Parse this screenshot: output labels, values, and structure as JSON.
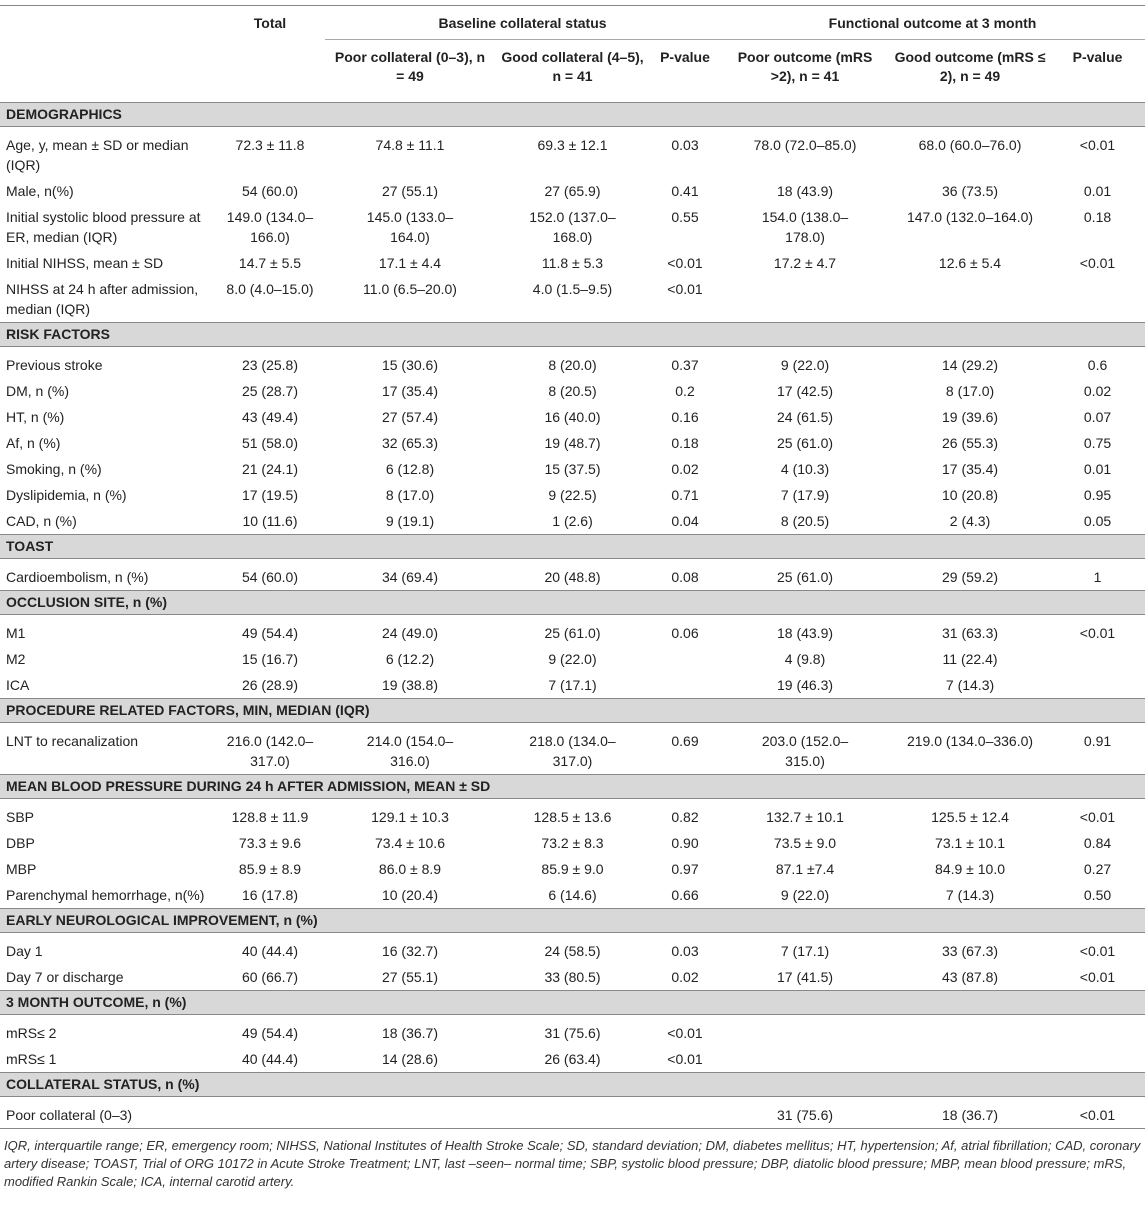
{
  "header": {
    "total": "Total",
    "baseline": "Baseline collateral status",
    "functional": "Functional outcome at 3 month",
    "columns": [
      "Poor collateral (0–3), n = 49",
      "Good collateral (4–5), n = 41",
      "P-value",
      "Poor outcome (mRS >2), n = 41",
      "Good outcome (mRS ≤ 2), n = 49",
      "P-value"
    ]
  },
  "sections": [
    {
      "title": "DEMOGRAPHICS",
      "rows": [
        [
          "Age, y, mean ± SD or median (IQR)",
          "72.3 ± 11.8",
          "74.8 ± 11.1",
          "69.3 ± 12.1",
          "0.03",
          "78.0 (72.0–85.0)",
          "68.0 (60.0–76.0)",
          "<0.01"
        ],
        [
          "Male, n(%)",
          "54 (60.0)",
          "27 (55.1)",
          "27 (65.9)",
          "0.41",
          "18 (43.9)",
          "36 (73.5)",
          "0.01"
        ],
        [
          "Initial systolic blood pressure at ER, median (IQR)",
          "149.0 (134.0–166.0)",
          "145.0 (133.0–164.0)",
          "152.0 (137.0–168.0)",
          "0.55",
          "154.0 (138.0–178.0)",
          "147.0 (132.0–164.0)",
          "0.18"
        ],
        [
          "Initial NIHSS, mean ± SD",
          "14.7 ± 5.5",
          "17.1 ± 4.4",
          "11.8 ± 5.3",
          "<0.01",
          "17.2 ± 4.7",
          "12.6 ± 5.4",
          "<0.01"
        ],
        [
          "NIHSS at 24 h after admission, median (IQR)",
          "8.0 (4.0–15.0)",
          "11.0 (6.5–20.0)",
          "4.0 (1.5–9.5)",
          "<0.01",
          null,
          null,
          null
        ]
      ]
    },
    {
      "title": "RISK FACTORS",
      "rows": [
        [
          "Previous stroke",
          "23 (25.8)",
          "15 (30.6)",
          "8 (20.0)",
          "0.37",
          "9 (22.0)",
          "14 (29.2)",
          "0.6"
        ],
        [
          "DM, n (%)",
          "25 (28.7)",
          "17 (35.4)",
          "8 (20.5)",
          "0.2",
          "17 (42.5)",
          "8 (17.0)",
          "0.02"
        ],
        [
          "HT, n (%)",
          "43 (49.4)",
          "27 (57.4)",
          "16 (40.0)",
          "0.16",
          "24 (61.5)",
          "19 (39.6)",
          "0.07"
        ],
        [
          "Af, n (%)",
          "51 (58.0)",
          "32 (65.3)",
          "19 (48.7)",
          "0.18",
          "25 (61.0)",
          "26 (55.3)",
          "0.75"
        ],
        [
          "Smoking, n (%)",
          "21 (24.1)",
          "6 (12.8)",
          "15 (37.5)",
          "0.02",
          "4 (10.3)",
          "17 (35.4)",
          "0.01"
        ],
        [
          "Dyslipidemia, n (%)",
          "17 (19.5)",
          "8 (17.0)",
          "9 (22.5)",
          "0.71",
          "7 (17.9)",
          "10 (20.8)",
          "0.95"
        ],
        [
          "CAD, n (%)",
          "10 (11.6)",
          "9 (19.1)",
          "1 (2.6)",
          "0.04",
          "8 (20.5)",
          "2 (4.3)",
          "0.05"
        ]
      ]
    },
    {
      "title": "TOAST",
      "rows": [
        [
          "Cardioembolism, n (%)",
          "54 (60.0)",
          "34 (69.4)",
          "20 (48.8)",
          "0.08",
          "25 (61.0)",
          "29 (59.2)",
          "1"
        ]
      ]
    },
    {
      "title": "OCCLUSION SITE, n (%)",
      "rows": [
        [
          "M1",
          "49 (54.4)",
          "24 (49.0)",
          "25 (61.0)",
          "0.06",
          "18 (43.9)",
          "31 (63.3)",
          "<0.01"
        ],
        [
          "M2",
          "15 (16.7)",
          "6 (12.2)",
          "9 (22.0)",
          null,
          "4 (9.8)",
          "11 (22.4)",
          null
        ],
        [
          "ICA",
          "26 (28.9)",
          "19 (38.8)",
          "7 (17.1)",
          null,
          "19 (46.3)",
          "7 (14.3)",
          null
        ]
      ]
    },
    {
      "title": "PROCEDURE RELATED FACTORS, MIN, MEDIAN (IQR)",
      "rows": [
        [
          "LNT to recanalization",
          "216.0 (142.0–317.0)",
          "214.0 (154.0–316.0)",
          "218.0 (134.0–317.0)",
          "0.69",
          "203.0 (152.0–315.0)",
          "219.0 (134.0–336.0)",
          "0.91"
        ]
      ]
    },
    {
      "title": "MEAN BLOOD PRESSURE DURING 24 h AFTER ADMISSION, MEAN ± SD",
      "rows": [
        [
          "SBP",
          "128.8 ± 11.9",
          "129.1 ± 10.3",
          "128.5 ± 13.6",
          "0.82",
          "132.7 ± 10.1",
          "125.5 ± 12.4",
          "<0.01"
        ],
        [
          "DBP",
          "73.3 ± 9.6",
          "73.4 ± 10.6",
          "73.2 ± 8.3",
          "0.90",
          "73.5 ± 9.0",
          "73.1 ± 10.1",
          "0.84"
        ],
        [
          "MBP",
          "85.9 ± 8.9",
          "86.0 ± 8.9",
          "85.9 ± 9.0",
          "0.97",
          "87.1 ±7.4",
          "84.9 ± 10.0",
          "0.27"
        ],
        [
          "Parenchymal hemorrhage, n(%)",
          "16 (17.8)",
          "10 (20.4)",
          "6 (14.6)",
          "0.66",
          "9 (22.0)",
          "7 (14.3)",
          "0.50"
        ]
      ]
    },
    {
      "title": "EARLY NEUROLOGICAL IMPROVEMENT, n (%)",
      "rows": [
        [
          "Day 1",
          "40 (44.4)",
          "16 (32.7)",
          "24 (58.5)",
          "0.03",
          "7 (17.1)",
          "33 (67.3)",
          "<0.01"
        ],
        [
          "Day 7 or discharge",
          "60 (66.7)",
          "27 (55.1)",
          "33 (80.5)",
          "0.02",
          "17 (41.5)",
          "43 (87.8)",
          "<0.01"
        ]
      ]
    },
    {
      "title": "3 MONTH OUTCOME, n (%)",
      "rows": [
        [
          "mRS≤ 2",
          "49 (54.4)",
          "18 (36.7)",
          "31 (75.6)",
          "<0.01",
          null,
          null,
          null
        ],
        [
          "mRS≤ 1",
          "40 (44.4)",
          "14 (28.6)",
          "26 (63.4)",
          "<0.01",
          null,
          null,
          null
        ]
      ]
    },
    {
      "title": "COLLATERAL STATUS, n (%)",
      "rows": [
        [
          "Poor collateral (0–3)",
          null,
          null,
          null,
          null,
          "31 (75.6)",
          "18 (36.7)",
          "<0.01"
        ]
      ]
    }
  ],
  "footnote": "IQR, interquartile range; ER, emergency room; NIHSS, National Institutes of Health Stroke Scale; SD, standard deviation; DM, diabetes mellitus; HT, hypertension; Af, atrial fibrillation; CAD, coronary artery disease; TOAST, Trial of ORG 10172 in Acute Stroke Treatment; LNT, last –seen– normal time; SBP, systolic blood pressure; DBP, diatolic blood pressure; MBP, mean blood pressure; mRS, modified Rankin Scale; ICA, internal carotid artery."
}
